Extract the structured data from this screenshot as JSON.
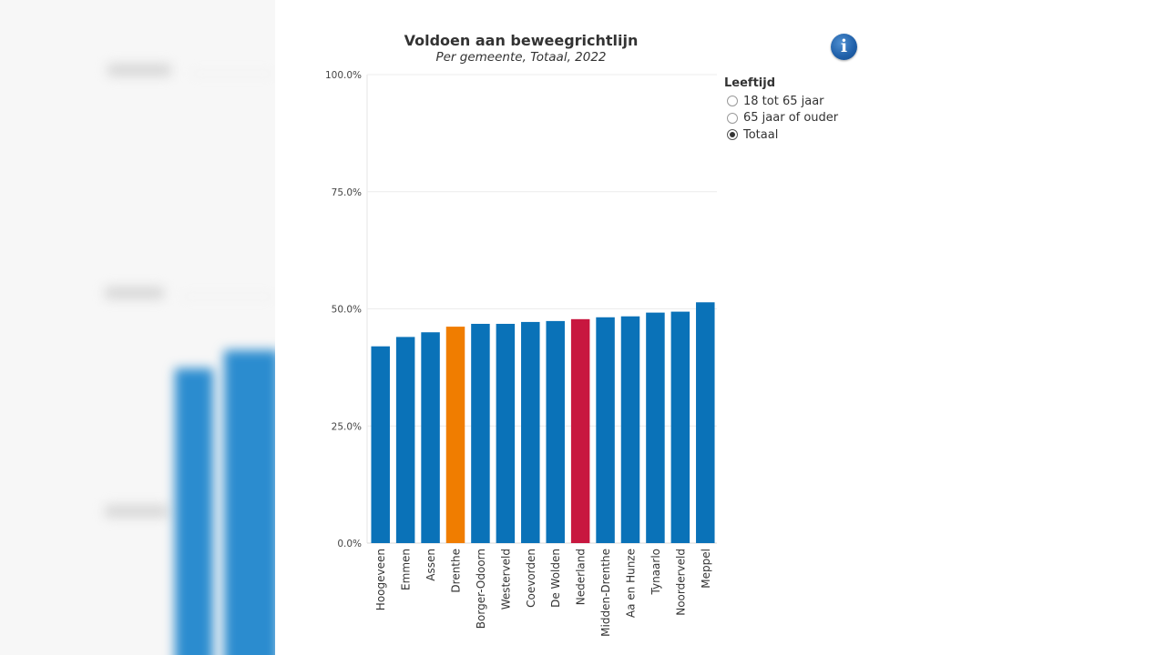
{
  "chart_data": {
    "type": "bar",
    "title": "Voldoen aan beweegrichtlijn",
    "subtitle": "Per gemeente, Totaal, 2022",
    "categories": [
      "Hoogeveen",
      "Emmen",
      "Assen",
      "Drenthe",
      "Borger-Odoorn",
      "Westerveld",
      "Coevorden",
      "De Wolden",
      "Nederland",
      "Midden-Drenthe",
      "Aa en Hunze",
      "Tynaarlo",
      "Noorderveld",
      "Meppel"
    ],
    "values": [
      42.0,
      44.0,
      45.0,
      46.2,
      46.8,
      46.8,
      47.2,
      47.4,
      47.8,
      48.2,
      48.4,
      49.2,
      49.4,
      51.4
    ],
    "highlight": {
      "Drenthe": "#f07d00",
      "Nederland": "#c8173f"
    },
    "ylim": [
      0,
      100
    ],
    "yticks": [
      "0.0%",
      "25.0%",
      "50.0%",
      "75.0%",
      "100.0%"
    ],
    "xlabel": "",
    "ylabel": "",
    "grid": true,
    "legend_position": "right"
  },
  "colors": {
    "bar": "#0a72b8",
    "regional": "#f07d00",
    "national": "#c8173f",
    "info": "#1f5fa8"
  },
  "info_icon": "info-icon",
  "legend": {
    "title": "Leeftijd",
    "options": [
      {
        "label": "18 tot 65 jaar",
        "selected": false
      },
      {
        "label": "65 jaar of ouder",
        "selected": false
      },
      {
        "label": "Totaal",
        "selected": true
      }
    ]
  }
}
